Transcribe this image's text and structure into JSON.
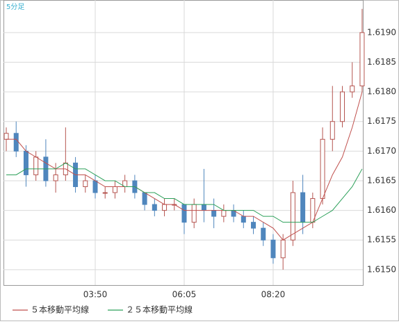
{
  "chart_data": {
    "type": "candlestick",
    "label": "5分足",
    "categories": [
      null,
      null,
      null,
      null,
      null,
      null,
      null,
      null,
      null,
      "03:50",
      null,
      null,
      null,
      null,
      null,
      null,
      null,
      null,
      "06:05",
      null,
      null,
      null,
      null,
      null,
      null,
      null,
      null,
      "08:20",
      null,
      null,
      null,
      null,
      null,
      null,
      null,
      null,
      null
    ],
    "open": [
      1.6172,
      1.6173,
      1.617,
      1.6166,
      1.6169,
      1.6165,
      1.6166,
      1.6168,
      1.6164,
      1.6165,
      1.6163,
      1.6163,
      1.6164,
      1.6165,
      1.6163,
      1.6161,
      1.616,
      1.6161,
      1.6161,
      1.6158,
      1.6161,
      1.616,
      1.6159,
      1.616,
      1.6159,
      1.6158,
      1.6157,
      1.6155,
      1.6152,
      1.6155,
      1.6163,
      1.6158,
      1.6162,
      1.6172,
      1.6175,
      1.618,
      1.6181
    ],
    "high": [
      1.6174,
      1.6175,
      1.6171,
      1.617,
      1.6172,
      1.6168,
      1.6174,
      1.6169,
      1.6166,
      1.6166,
      1.6164,
      1.6165,
      1.6166,
      1.6166,
      1.6163,
      1.6162,
      1.6162,
      1.6162,
      1.6161,
      1.6162,
      1.6167,
      1.6162,
      1.6161,
      1.6161,
      1.616,
      1.6159,
      1.6158,
      1.6156,
      1.6156,
      1.6165,
      1.6166,
      1.6163,
      1.6174,
      1.6181,
      1.6181,
      1.6185,
      1.6194
    ],
    "low": [
      1.617,
      1.6169,
      1.6164,
      1.6165,
      1.6164,
      1.6163,
      1.6165,
      1.6163,
      1.6163,
      1.6162,
      1.6162,
      1.6162,
      1.6163,
      1.6162,
      1.616,
      1.6159,
      1.6159,
      1.616,
      1.6156,
      1.6157,
      1.6158,
      1.6157,
      1.6158,
      1.6158,
      1.6157,
      1.6156,
      1.6154,
      1.6151,
      1.615,
      1.6154,
      1.6156,
      1.6157,
      1.6161,
      1.617,
      1.6174,
      1.6179,
      1.618
    ],
    "close": [
      1.6173,
      1.617,
      1.6166,
      1.6169,
      1.6165,
      1.6166,
      1.6168,
      1.6164,
      1.6165,
      1.6163,
      1.6163,
      1.6164,
      1.6165,
      1.6163,
      1.6161,
      1.616,
      1.6161,
      1.6161,
      1.6158,
      1.6161,
      1.616,
      1.6159,
      1.616,
      1.6159,
      1.6158,
      1.6157,
      1.6155,
      1.6152,
      1.6155,
      1.6163,
      1.6158,
      1.6162,
      1.6172,
      1.6175,
      1.618,
      1.6181,
      1.619
    ],
    "up_color": "#b5544f",
    "down_color": "#4f86bd",
    "series": [
      {
        "name": "５本移動平均線",
        "color": "#c0504d",
        "values": [
          1.6172,
          1.6172,
          1.617,
          1.6169,
          1.6168,
          1.6167,
          1.6167,
          1.6166,
          1.6166,
          1.6165,
          1.6164,
          1.6164,
          1.6164,
          1.6164,
          1.6163,
          1.6162,
          1.6161,
          1.6161,
          1.616,
          1.616,
          1.616,
          1.616,
          1.616,
          1.616,
          1.6159,
          1.6159,
          1.6158,
          1.6157,
          1.6155,
          1.6156,
          1.6157,
          1.6158,
          1.6162,
          1.6166,
          1.6169,
          1.6174,
          1.618
        ]
      },
      {
        "name": "２５本移動平均線",
        "color": "#2ca05a",
        "values": [
          1.6166,
          1.6166,
          1.6167,
          1.6167,
          1.6167,
          1.6167,
          1.6168,
          1.6167,
          1.6167,
          1.6166,
          1.6165,
          1.6165,
          1.6164,
          1.6164,
          1.6163,
          1.6163,
          1.6162,
          1.6162,
          1.6161,
          1.6161,
          1.6161,
          1.6161,
          1.616,
          1.616,
          1.616,
          1.616,
          1.6159,
          1.6159,
          1.6158,
          1.6158,
          1.6158,
          1.6158,
          1.6159,
          1.616,
          1.6162,
          1.6164,
          1.6167
        ]
      }
    ],
    "ylim": [
      1.61474,
      1.61955
    ],
    "yticks": [
      {
        "value": 1.615,
        "label": "1.6150"
      },
      {
        "value": 1.6155,
        "label": "1.6155"
      },
      {
        "value": 1.616,
        "label": "1.6160"
      },
      {
        "value": 1.6165,
        "label": "1.6165"
      },
      {
        "value": 1.617,
        "label": "1.6170"
      },
      {
        "value": 1.6175,
        "label": "1.6175"
      },
      {
        "value": 1.618,
        "label": "1.6180"
      },
      {
        "value": 1.6185,
        "label": "1.6185"
      },
      {
        "value": 1.619,
        "label": "1.6190"
      }
    ],
    "grid": true
  }
}
